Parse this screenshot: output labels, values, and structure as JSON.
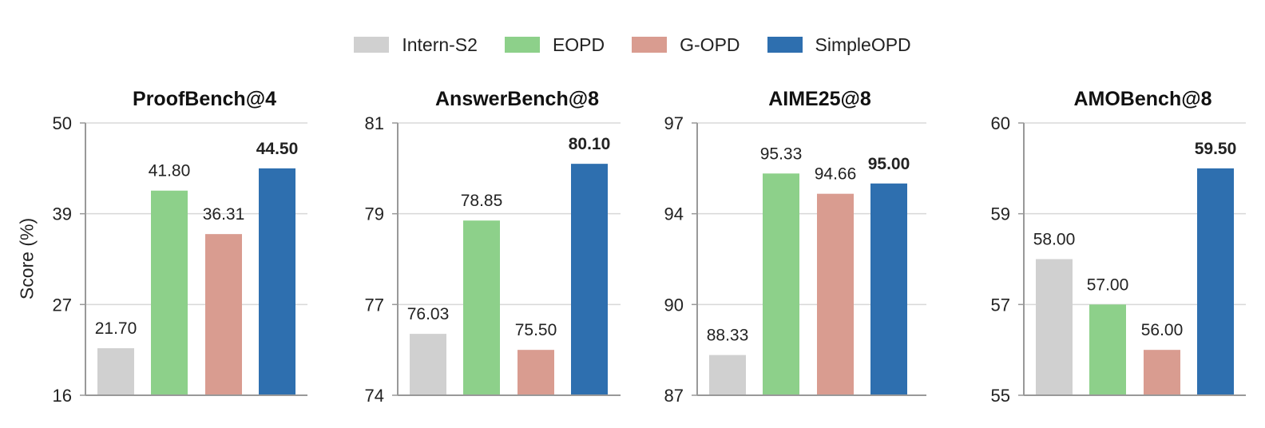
{
  "legend": [
    {
      "name": "Intern-S2",
      "color": "#d0d0d0"
    },
    {
      "name": "EOPD",
      "color": "#8dd08a"
    },
    {
      "name": "G-OPD",
      "color": "#d99c90"
    },
    {
      "name": "SimpleOPD",
      "color": "#2e6faf"
    }
  ],
  "ylabel": "Score (%)",
  "chart_data": [
    {
      "type": "bar",
      "title": "ProofBench@4",
      "categories": [
        "Intern-S2",
        "EOPD",
        "G-OPD",
        "SimpleOPD"
      ],
      "values": [
        21.7,
        41.8,
        36.31,
        44.5
      ],
      "value_labels": [
        "21.70",
        "41.80",
        "36.31",
        "44.50"
      ],
      "ylim": [
        16,
        50
      ],
      "yticks": [
        "16",
        "27",
        "39",
        "50"
      ],
      "highlight_index": 3,
      "grid": true
    },
    {
      "type": "bar",
      "title": "AnswerBench@8",
      "categories": [
        "Intern-S2",
        "EOPD",
        "G-OPD",
        "SimpleOPD"
      ],
      "values": [
        76.03,
        78.85,
        75.5,
        80.1
      ],
      "value_labels": [
        "76.03",
        "78.85",
        "75.50",
        "80.10"
      ],
      "ylim": [
        74,
        81
      ],
      "yticks": [
        "74",
        "77",
        "79",
        "81"
      ],
      "highlight_index": 3,
      "grid": true
    },
    {
      "type": "bar",
      "title": "AIME25@8",
      "categories": [
        "Intern-S2",
        "EOPD",
        "G-OPD",
        "SimpleOPD"
      ],
      "values": [
        88.33,
        95.33,
        94.66,
        95.0
      ],
      "value_labels": [
        "88.33",
        "95.33",
        "94.66",
        "95.00"
      ],
      "ylim": [
        87,
        97
      ],
      "yticks": [
        "87",
        "90",
        "94",
        "97"
      ],
      "highlight_index": 3,
      "grid": true
    },
    {
      "type": "bar",
      "title": "AMOBench@8",
      "categories": [
        "Intern-S2",
        "EOPD",
        "G-OPD",
        "SimpleOPD"
      ],
      "values": [
        58.0,
        57.0,
        56.0,
        59.5
      ],
      "value_labels": [
        "58.00",
        "57.00",
        "56.00",
        "59.50"
      ],
      "ylim": [
        55,
        60
      ],
      "yticks": [
        "55",
        "57",
        "59",
        "60"
      ],
      "highlight_index": 3,
      "grid": true
    }
  ]
}
